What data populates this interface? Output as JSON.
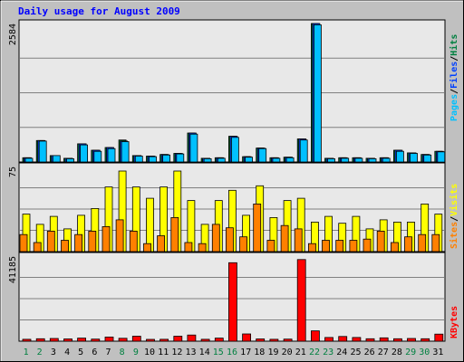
{
  "title": "Daily usage for August 2009",
  "colors": {
    "background": "#C0C0C0",
    "plot_bg": "#E8E8E8",
    "frame": "#000000",
    "grid": "#808080",
    "title": "#0000FF",
    "pages": "#00C0FF",
    "files": "#0040FF",
    "hits": "#008040",
    "sites": "#FF8000",
    "visits": "#FFFF00",
    "kbytes": "#FF0000",
    "weekday_label": "#000000",
    "weekend_label": "#008040"
  },
  "legend": {
    "pages": "Pages",
    "files": "Files",
    "hits": "Hits",
    "sites": "Sites",
    "visits": "Visits",
    "kbytes": "KBytes",
    "sep": "/"
  },
  "chart_data": [
    {
      "type": "bar",
      "title": "Daily usage for August 2009",
      "ymax_label": "2584",
      "ylim": [
        0,
        2584
      ],
      "grid": true,
      "legend_position": "right",
      "categories": [
        "1",
        "2",
        "3",
        "4",
        "5",
        "6",
        "7",
        "8",
        "9",
        "10",
        "11",
        "12",
        "13",
        "14",
        "15",
        "16",
        "17",
        "18",
        "19",
        "20",
        "21",
        "22",
        "23",
        "24",
        "25",
        "26",
        "27",
        "28",
        "29",
        "30",
        "31"
      ],
      "weekend_days": [
        "1",
        "2",
        "8",
        "9",
        "15",
        "16",
        "22",
        "23",
        "29",
        "30"
      ],
      "series": [
        {
          "name": "Hits",
          "values": [
            80,
            400,
            120,
            70,
            340,
            220,
            270,
            410,
            120,
            110,
            140,
            160,
            540,
            70,
            80,
            480,
            100,
            260,
            80,
            90,
            430,
            2584,
            70,
            80,
            80,
            70,
            80,
            220,
            170,
            140,
            200
          ]
        },
        {
          "name": "Files",
          "values": [
            80,
            400,
            120,
            70,
            340,
            220,
            270,
            390,
            120,
            110,
            140,
            160,
            540,
            70,
            80,
            480,
            100,
            260,
            80,
            90,
            430,
            2584,
            70,
            80,
            80,
            70,
            80,
            220,
            170,
            140,
            200
          ]
        },
        {
          "name": "Pages",
          "values": [
            70,
            390,
            120,
            60,
            320,
            200,
            250,
            380,
            110,
            100,
            130,
            150,
            520,
            60,
            70,
            460,
            90,
            250,
            70,
            80,
            410,
            2560,
            60,
            70,
            70,
            60,
            70,
            200,
            160,
            130,
            190
          ]
        }
      ]
    },
    {
      "type": "bar",
      "ymax_label": "75",
      "ylim": [
        0,
        75
      ],
      "grid": true,
      "legend_position": "right",
      "categories": [
        "1",
        "2",
        "3",
        "4",
        "5",
        "6",
        "7",
        "8",
        "9",
        "10",
        "11",
        "12",
        "13",
        "14",
        "15",
        "16",
        "17",
        "18",
        "19",
        "20",
        "21",
        "22",
        "23",
        "24",
        "25",
        "26",
        "27",
        "28",
        "29",
        "30",
        "31"
      ],
      "series": [
        {
          "name": "Visits",
          "values": [
            33,
            24,
            31,
            20,
            32,
            38,
            57,
            71,
            57,
            47,
            57,
            71,
            45,
            24,
            45,
            54,
            32,
            58,
            30,
            45,
            47,
            26,
            31,
            25,
            31,
            20,
            28,
            26,
            26,
            42,
            33
          ]
        },
        {
          "name": "Sites",
          "values": [
            15,
            8,
            18,
            10,
            15,
            18,
            22,
            28,
            18,
            7,
            14,
            30,
            8,
            7,
            24,
            21,
            13,
            42,
            10,
            23,
            20,
            7,
            10,
            10,
            10,
            11,
            18,
            8,
            13,
            15,
            15
          ]
        }
      ]
    },
    {
      "type": "bar",
      "ymax_label": "41185",
      "ylim": [
        0,
        41185
      ],
      "grid": true,
      "legend_position": "right",
      "categories": [
        "1",
        "2",
        "3",
        "4",
        "5",
        "6",
        "7",
        "8",
        "9",
        "10",
        "11",
        "12",
        "13",
        "14",
        "15",
        "16",
        "17",
        "18",
        "19",
        "20",
        "21",
        "22",
        "23",
        "24",
        "25",
        "26",
        "27",
        "28",
        "29",
        "30",
        "31"
      ],
      "series": [
        {
          "name": "KBytes",
          "values": [
            900,
            1200,
            1300,
            1100,
            1500,
            1000,
            2000,
            1400,
            2400,
            800,
            900,
            2400,
            3000,
            900,
            1500,
            38000,
            3500,
            1100,
            900,
            1000,
            39500,
            5000,
            1800,
            2300,
            1800,
            1200,
            1600,
            1200,
            1300,
            1200,
            3400
          ]
        }
      ]
    }
  ]
}
